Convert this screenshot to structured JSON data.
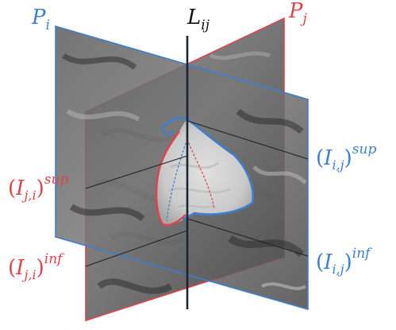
{
  "colors": {
    "plane_i": "#3d7fd0",
    "plane_j": "#e0434b",
    "line": "#1b2431",
    "image_dark": "#3a3a3a",
    "image_mid": "#6f6f6f",
    "image_light": "#bdbdbd",
    "organ_fill": "#d8d8d8"
  },
  "labels": {
    "plane_i": {
      "base": "P",
      "sub": "i"
    },
    "plane_j": {
      "base": "P",
      "sub": "j"
    },
    "line_ij": {
      "base": "L",
      "sub": "ij"
    },
    "i_j_sup": {
      "base": "I",
      "sub": "i,j",
      "sup": "sup"
    },
    "i_j_inf": {
      "base": "I",
      "sub": "i,j",
      "sup": "inf"
    },
    "j_i_sup": {
      "base": "I",
      "sub": "j,i",
      "sup": "sup"
    },
    "j_i_inf": {
      "base": "I",
      "sub": "j,i",
      "sup": "inf"
    }
  }
}
